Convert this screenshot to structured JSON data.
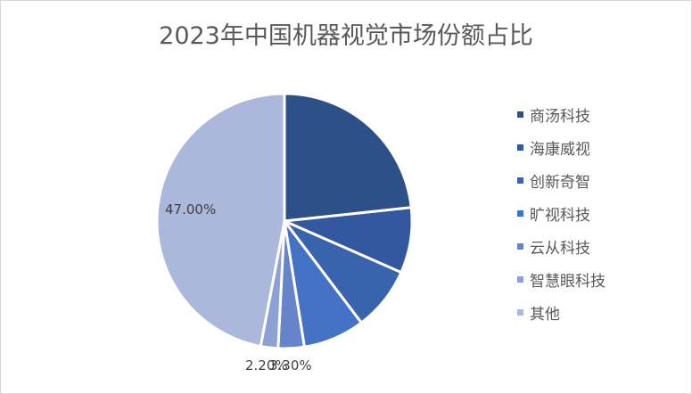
{
  "chart_data": {
    "type": "pie",
    "title": "2023年中国机器视觉市场份额占比",
    "categories": [
      "商汤科技",
      "海康威视",
      "创新奇智",
      "旷视科技",
      "云从科技",
      "智慧眼科技",
      "其他"
    ],
    "values": [
      23.3,
      8.3,
      8.1,
      7.8,
      3.3,
      2.2,
      47.0
    ],
    "colors": [
      "#2e5089",
      "#3458a0",
      "#3a63ad",
      "#4472c4",
      "#6783c9",
      "#8ea1d4",
      "#abb8dc"
    ],
    "data_labels": [
      {
        "category": "其他",
        "text": "47.00%"
      },
      {
        "category": "智慧眼科技",
        "text": "2.20%"
      },
      {
        "category": "云从科技",
        "text": "3.30%"
      }
    ],
    "legend_position": "right"
  },
  "labels": {
    "l47": "47.00%",
    "l22": "2.20%",
    "l33": "3.30%"
  }
}
